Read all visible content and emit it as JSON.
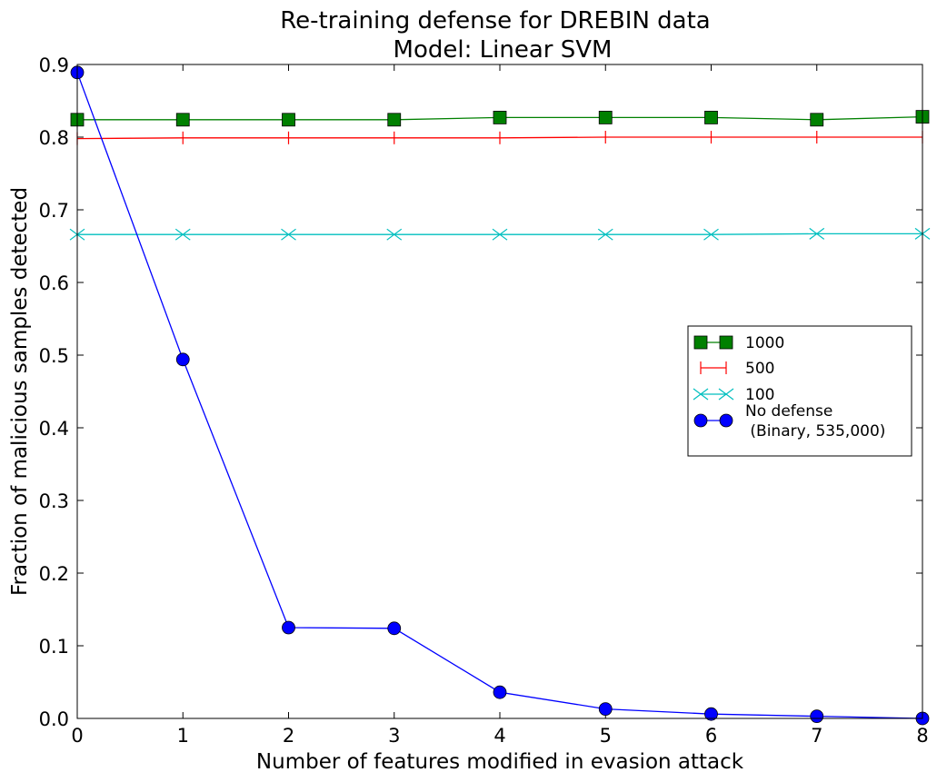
{
  "chart_data": {
    "type": "line",
    "title": "Re-training defense for DREBIN data",
    "subtitle": "Model: Linear SVM",
    "xlabel": "Number of features modified in evasion attack",
    "ylabel": "Fraction of malicious samples detected",
    "xlim": [
      0,
      8
    ],
    "ylim": [
      0.0,
      0.9
    ],
    "x_ticks": [
      "0",
      "1",
      "2",
      "3",
      "4",
      "5",
      "6",
      "7",
      "8"
    ],
    "y_ticks": [
      "0.0",
      "0.1",
      "0.2",
      "0.3",
      "0.4",
      "0.5",
      "0.6",
      "0.7",
      "0.8",
      "0.9"
    ],
    "x": [
      0,
      1,
      2,
      3,
      4,
      5,
      6,
      7,
      8
    ],
    "grid": false,
    "legend_position": "center-right",
    "series": [
      {
        "name": "1000",
        "legend_lines": [
          "1000"
        ],
        "marker": "square",
        "color": "#008000",
        "values": [
          0.824,
          0.824,
          0.824,
          0.824,
          0.827,
          0.827,
          0.827,
          0.824,
          0.828
        ]
      },
      {
        "name": "500",
        "legend_lines": [
          "500"
        ],
        "marker": "vline",
        "color": "#ff0000",
        "values": [
          0.798,
          0.799,
          0.799,
          0.799,
          0.799,
          0.8,
          0.8,
          0.8,
          0.8
        ]
      },
      {
        "name": "100",
        "legend_lines": [
          "100"
        ],
        "marker": "x",
        "color": "#00bfbf",
        "values": [
          0.666,
          0.666,
          0.666,
          0.666,
          0.666,
          0.666,
          0.666,
          0.667,
          0.667
        ]
      },
      {
        "name": "No defense\n (Binary, 535,000)",
        "legend_lines": [
          "No defense",
          " (Binary, 535,000)"
        ],
        "marker": "circle",
        "color": "#0000ff",
        "values": [
          0.889,
          0.494,
          0.125,
          0.124,
          0.036,
          0.013,
          0.006,
          0.003,
          0.0
        ]
      }
    ]
  }
}
